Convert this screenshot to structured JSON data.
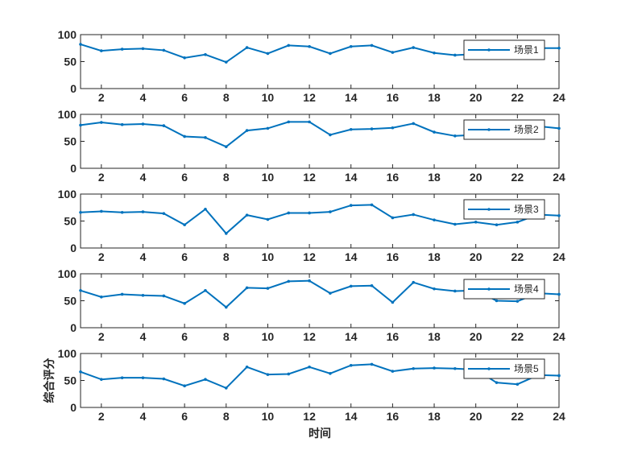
{
  "chart_data": [
    {
      "type": "line",
      "x": [
        1,
        2,
        3,
        4,
        5,
        6,
        7,
        8,
        9,
        10,
        11,
        12,
        13,
        14,
        15,
        16,
        17,
        18,
        19,
        20,
        21,
        22,
        23,
        24
      ],
      "series": [
        {
          "name": "场景1",
          "values": [
            82,
            70,
            73,
            74,
            71,
            57,
            63,
            49,
            76,
            65,
            80,
            78,
            65,
            78,
            80,
            67,
            76,
            66,
            62,
            64,
            56,
            68,
            75,
            75
          ]
        }
      ],
      "xlim": [
        1,
        24
      ],
      "ylim": [
        0,
        100
      ],
      "xticks": [
        "2",
        "4",
        "6",
        "8",
        "10",
        "12",
        "14",
        "16",
        "18",
        "20",
        "22",
        "24"
      ],
      "yticks": [
        "0",
        "50",
        "100"
      ],
      "legend": "top-right",
      "color": "#0072BD"
    },
    {
      "type": "line",
      "x": [
        1,
        2,
        3,
        4,
        5,
        6,
        7,
        8,
        9,
        10,
        11,
        12,
        13,
        14,
        15,
        16,
        17,
        18,
        19,
        20,
        21,
        22,
        23,
        24
      ],
      "series": [
        {
          "name": "场景2",
          "values": [
            80,
            85,
            81,
            82,
            79,
            59,
            57,
            40,
            70,
            74,
            86,
            86,
            62,
            72,
            73,
            75,
            83,
            67,
            60,
            62,
            68,
            72,
            78,
            74
          ]
        }
      ],
      "xlim": [
        1,
        24
      ],
      "ylim": [
        0,
        100
      ],
      "xticks": [
        "2",
        "4",
        "6",
        "8",
        "10",
        "12",
        "14",
        "16",
        "18",
        "20",
        "22",
        "24"
      ],
      "yticks": [
        "0",
        "50",
        "100"
      ],
      "legend": "top-right",
      "color": "#0072BD"
    },
    {
      "type": "line",
      "x": [
        1,
        2,
        3,
        4,
        5,
        6,
        7,
        8,
        9,
        10,
        11,
        12,
        13,
        14,
        15,
        16,
        17,
        18,
        19,
        20,
        21,
        22,
        23,
        24
      ],
      "series": [
        {
          "name": "场景3",
          "values": [
            66,
            68,
            66,
            67,
            64,
            43,
            72,
            27,
            61,
            53,
            65,
            65,
            67,
            79,
            80,
            56,
            62,
            52,
            44,
            48,
            43,
            48,
            62,
            60
          ]
        }
      ],
      "xlim": [
        1,
        24
      ],
      "ylim": [
        0,
        100
      ],
      "xticks": [
        "2",
        "4",
        "6",
        "8",
        "10",
        "12",
        "14",
        "16",
        "18",
        "20",
        "22",
        "24"
      ],
      "yticks": [
        "0",
        "50",
        "100"
      ],
      "legend": "top-right",
      "color": "#0072BD"
    },
    {
      "type": "line",
      "x": [
        1,
        2,
        3,
        4,
        5,
        6,
        7,
        8,
        9,
        10,
        11,
        12,
        13,
        14,
        15,
        16,
        17,
        18,
        19,
        20,
        21,
        22,
        23,
        24
      ],
      "series": [
        {
          "name": "场景4",
          "values": [
            69,
            57,
            62,
            60,
            59,
            45,
            69,
            38,
            74,
            73,
            86,
            87,
            64,
            77,
            78,
            47,
            84,
            72,
            68,
            69,
            50,
            49,
            64,
            62
          ]
        }
      ],
      "xlim": [
        1,
        24
      ],
      "ylim": [
        0,
        100
      ],
      "xticks": [
        "2",
        "4",
        "6",
        "8",
        "10",
        "12",
        "14",
        "16",
        "18",
        "20",
        "22",
        "24"
      ],
      "yticks": [
        "0",
        "50",
        "100"
      ],
      "legend": "top-right",
      "color": "#0072BD"
    },
    {
      "type": "line",
      "x": [
        1,
        2,
        3,
        4,
        5,
        6,
        7,
        8,
        9,
        10,
        11,
        12,
        13,
        14,
        15,
        16,
        17,
        18,
        19,
        20,
        21,
        22,
        23,
        24
      ],
      "series": [
        {
          "name": "场景5",
          "values": [
            66,
            52,
            55,
            55,
            53,
            40,
            52,
            36,
            75,
            61,
            62,
            75,
            63,
            78,
            80,
            67,
            72,
            73,
            72,
            70,
            46,
            43,
            60,
            59
          ]
        }
      ],
      "xlim": [
        1,
        24
      ],
      "ylim": [
        0,
        100
      ],
      "xticks": [
        "2",
        "4",
        "6",
        "8",
        "10",
        "12",
        "14",
        "16",
        "18",
        "20",
        "22",
        "24"
      ],
      "yticks": [
        "0",
        "50",
        "100"
      ],
      "legend": "top-right",
      "color": "#0072BD",
      "xlabel": "时间",
      "ylabel": "综合评分"
    }
  ]
}
